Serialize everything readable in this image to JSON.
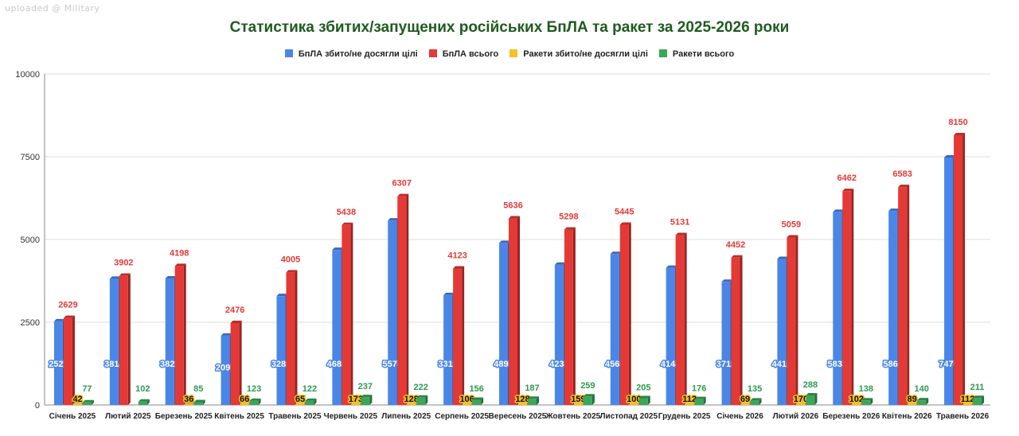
{
  "watermark": "uploaded @ Military",
  "chart_data": {
    "type": "bar",
    "title": "Статистика збитих/запущених російських БпЛА та ракет за 2025-2026 роки",
    "categories": [
      "Січень 2025",
      "Лютий 2025",
      "Березень 2025",
      "Квітень 2025",
      "Травень 2025",
      "Червень 2025",
      "Липень 2025",
      "Серпень 2025",
      "Вересень 2025",
      "Жовтень 2025",
      "Листопад 2025",
      "Грудень 2025",
      "Січень 2026",
      "Лютий 2026",
      "Березень 2026",
      "Квітень 2026",
      "Травень 2026"
    ],
    "series": [
      {
        "name": "БпЛА збито/не досягли цілі",
        "color": "#4a86e8",
        "values": [
          2527,
          3814,
          3822,
          2095,
          3289,
          4684,
          5574,
          3319,
          4895,
          4238,
          4560,
          4144,
          3719,
          4410,
          5833,
          5861,
          7476
        ]
      },
      {
        "name": "БпЛА всього",
        "color": "#e53935",
        "values": [
          2629,
          3902,
          4198,
          2476,
          4005,
          5438,
          6307,
          4123,
          5636,
          5298,
          5445,
          5131,
          4452,
          5059,
          6462,
          6583,
          8150
        ]
      },
      {
        "name": "Ракети збито/не досягли цілі",
        "color": "#f6c026",
        "values": [
          42,
          null,
          36,
          66,
          65,
          173,
          128,
          106,
          128,
          159,
          100,
          112,
          69,
          170,
          102,
          89,
          112
        ]
      },
      {
        "name": "Ракети всього",
        "color": "#3aa65a",
        "values": [
          77,
          102,
          85,
          123,
          122,
          237,
          222,
          156,
          187,
          259,
          205,
          176,
          135,
          288,
          138,
          140,
          211
        ]
      }
    ],
    "ylim": [
      0,
      10000
    ],
    "yticks": [
      0,
      2500,
      5000,
      7500,
      10000
    ],
    "grid": true,
    "legend": "top"
  }
}
